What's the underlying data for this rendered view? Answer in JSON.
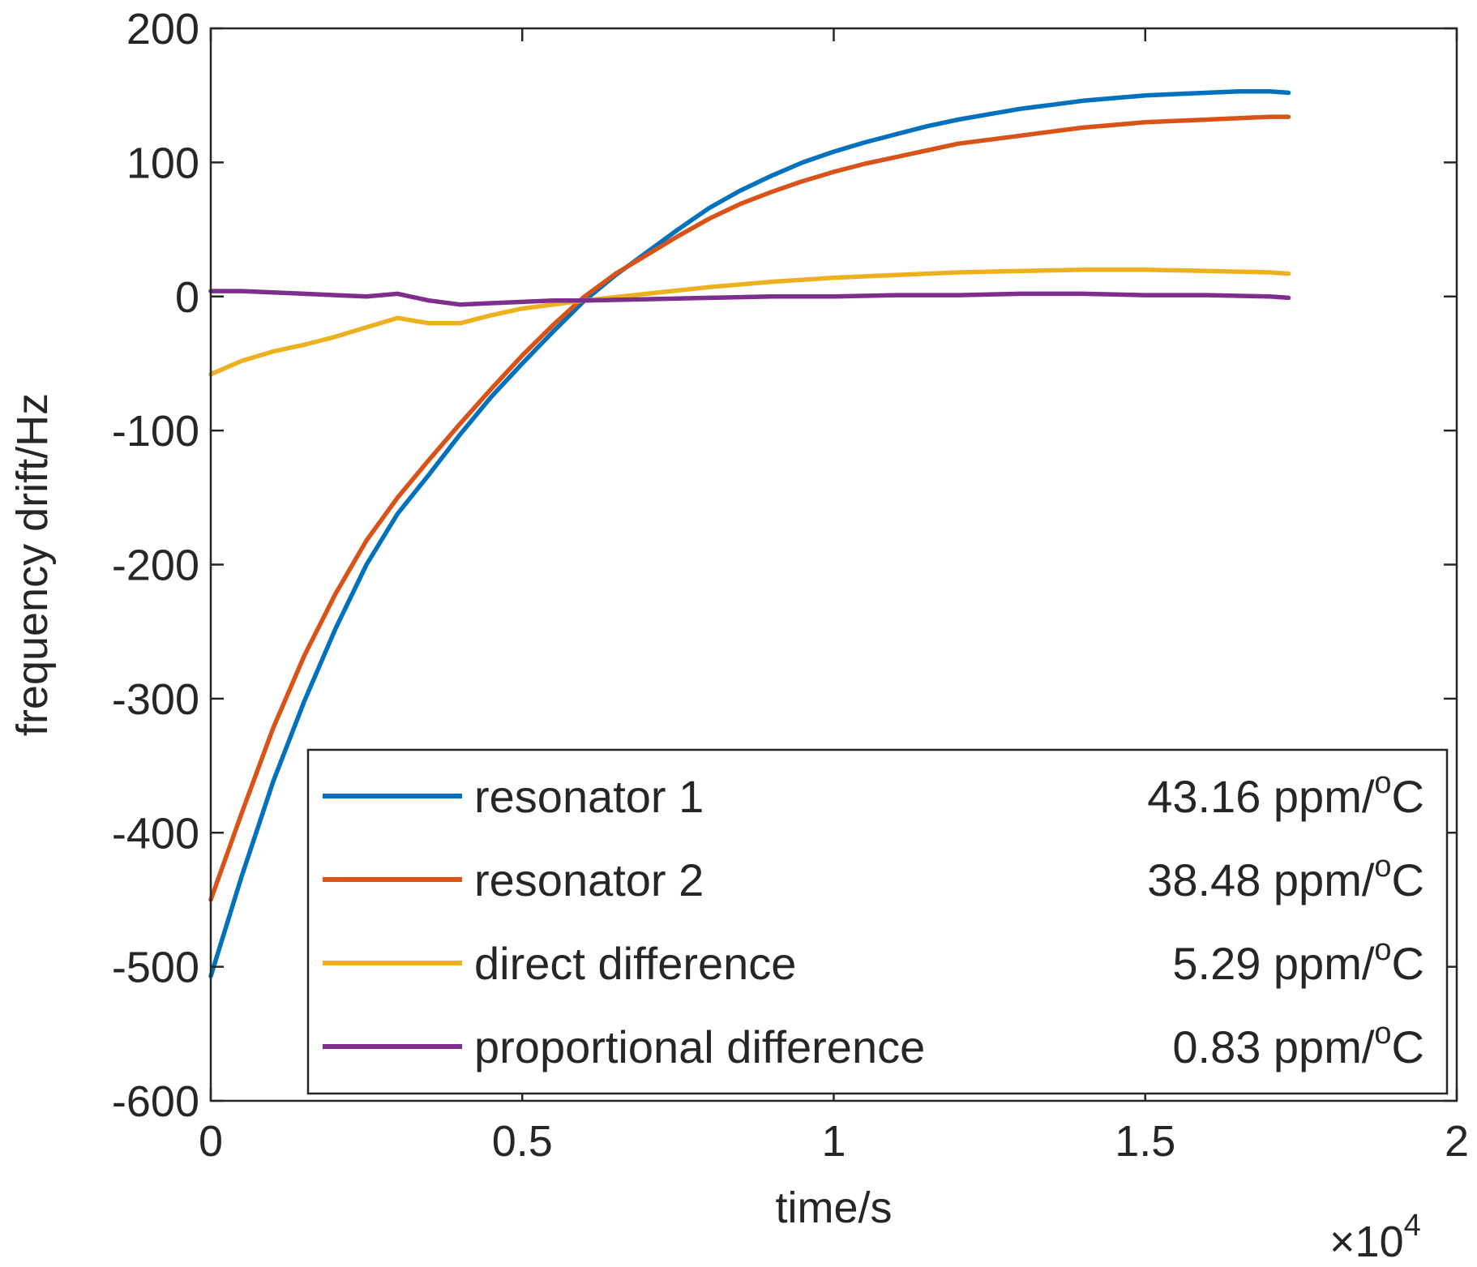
{
  "chart_data": {
    "type": "line",
    "title": "",
    "xlabel": "time/s",
    "ylabel": "frequency drift/Hz",
    "x_exponent_label": "10",
    "x_exponent_power": "4",
    "x_exponent_prefix": "×",
    "xlim": [
      0,
      2
    ],
    "ylim": [
      -600,
      200
    ],
    "x_scale": 10000,
    "x_ticks": [
      0,
      0.5,
      1,
      1.5,
      2
    ],
    "x_tick_labels": [
      "0",
      "0.5",
      "1",
      "1.5",
      "2"
    ],
    "y_ticks": [
      -600,
      -500,
      -400,
      -300,
      -200,
      -100,
      0,
      100,
      200
    ],
    "y_tick_labels": [
      "-600",
      "-500",
      "-400",
      "-300",
      "-200",
      "-100",
      "0",
      "100",
      "200"
    ],
    "grid": false,
    "legend_position": "bottom-right",
    "series": [
      {
        "name": "resonator 1",
        "coef_number": "43.16",
        "coef_unit": "ppm/",
        "coef_deg": "o",
        "coef_c": "C",
        "color": "#0072BD",
        "x": [
          0,
          0.05,
          0.1,
          0.15,
          0.2,
          0.25,
          0.3,
          0.35,
          0.4,
          0.45,
          0.5,
          0.55,
          0.6,
          0.65,
          0.7,
          0.75,
          0.8,
          0.85,
          0.9,
          0.95,
          1.0,
          1.05,
          1.1,
          1.15,
          1.2,
          1.25,
          1.3,
          1.35,
          1.4,
          1.45,
          1.5,
          1.55,
          1.6,
          1.65,
          1.7,
          1.73
        ],
        "y": [
          -507,
          -432,
          -362,
          -302,
          -248,
          -200,
          -162,
          -133,
          -103,
          -75,
          -50,
          -26,
          -3,
          16,
          33,
          50,
          66,
          79,
          90,
          100,
          108,
          115,
          121,
          127,
          132,
          136,
          140,
          143,
          146,
          148,
          150,
          151,
          152,
          153,
          153,
          152
        ]
      },
      {
        "name": "resonator 2",
        "coef_number": "38.48",
        "coef_unit": "ppm/",
        "coef_deg": "o",
        "coef_c": "C",
        "color": "#D95319",
        "x": [
          0,
          0.05,
          0.1,
          0.15,
          0.2,
          0.25,
          0.3,
          0.35,
          0.4,
          0.45,
          0.5,
          0.55,
          0.6,
          0.65,
          0.7,
          0.75,
          0.8,
          0.85,
          0.9,
          0.95,
          1.0,
          1.05,
          1.1,
          1.15,
          1.2,
          1.25,
          1.3,
          1.35,
          1.4,
          1.45,
          1.5,
          1.55,
          1.6,
          1.65,
          1.7,
          1.73
        ],
        "y": [
          -450,
          -385,
          -322,
          -268,
          -222,
          -182,
          -150,
          -122,
          -95,
          -69,
          -44,
          -21,
          0,
          17,
          31,
          45,
          58,
          69,
          78,
          86,
          93,
          99,
          104,
          109,
          114,
          117,
          120,
          123,
          126,
          128,
          130,
          131,
          132,
          133,
          134,
          134
        ]
      },
      {
        "name": "direct difference",
        "coef_number": "5.29",
        "coef_unit": "ppm/",
        "coef_deg": "o",
        "coef_c": "C",
        "color": "#EDB120",
        "x": [
          0,
          0.05,
          0.1,
          0.15,
          0.2,
          0.25,
          0.3,
          0.35,
          0.4,
          0.45,
          0.5,
          0.55,
          0.6,
          0.7,
          0.8,
          0.9,
          1.0,
          1.1,
          1.2,
          1.3,
          1.4,
          1.5,
          1.6,
          1.7,
          1.73
        ],
        "y": [
          -58,
          -48,
          -41,
          -36,
          -30,
          -23,
          -16,
          -20,
          -20,
          -14,
          -9,
          -6,
          -3,
          2,
          7,
          11,
          14,
          16,
          18,
          19,
          20,
          20,
          19,
          18,
          17
        ]
      },
      {
        "name": "proportional difference",
        "coef_number": "0.83",
        "coef_unit": "ppm/",
        "coef_deg": "o",
        "coef_c": "C",
        "color": "#7E2F8E",
        "x": [
          0,
          0.05,
          0.1,
          0.15,
          0.2,
          0.25,
          0.3,
          0.35,
          0.4,
          0.45,
          0.5,
          0.55,
          0.6,
          0.7,
          0.8,
          0.9,
          1.0,
          1.1,
          1.2,
          1.3,
          1.4,
          1.5,
          1.6,
          1.7,
          1.73
        ],
        "y": [
          4,
          4,
          3,
          2,
          1,
          0,
          2,
          -3,
          -6,
          -5,
          -4,
          -3,
          -3,
          -2,
          -1,
          0,
          0,
          1,
          1,
          2,
          2,
          1,
          1,
          0,
          -1
        ]
      }
    ]
  }
}
